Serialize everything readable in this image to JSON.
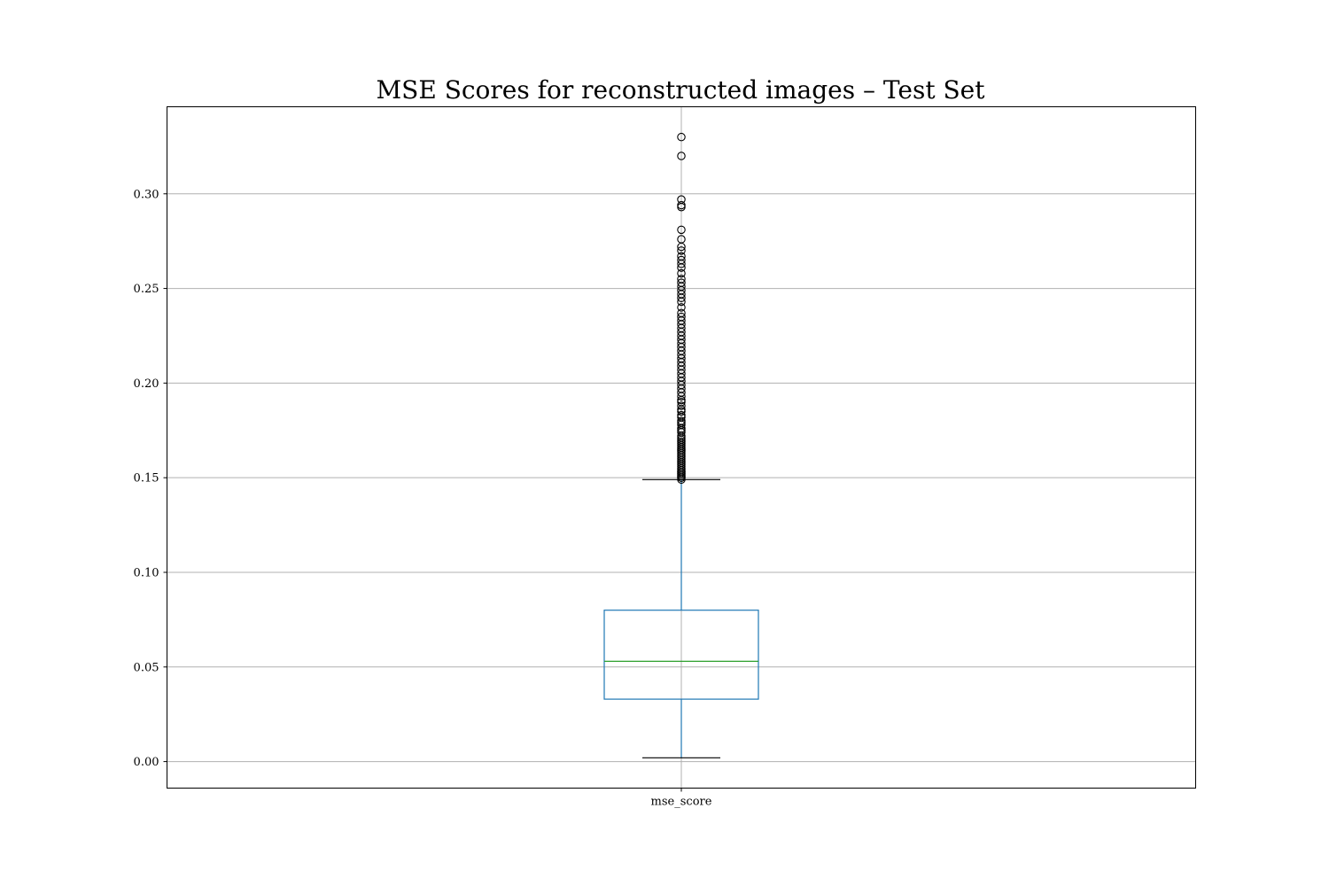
{
  "chart_data": {
    "type": "box",
    "title": "MSE Scores for reconstructed images – Test Set",
    "xlabel": "",
    "ylabel": "",
    "categories": [
      "mse_score"
    ],
    "ylim": [
      -0.014,
      0.346
    ],
    "yticks": [
      0.0,
      0.05,
      0.1,
      0.15,
      0.2,
      0.25,
      0.3
    ],
    "ytick_labels": [
      "0.00",
      "0.05",
      "0.10",
      "0.15",
      "0.20",
      "0.25",
      "0.30"
    ],
    "grid": true,
    "box": {
      "whisker_low": 0.002,
      "q1": 0.033,
      "median": 0.053,
      "q3": 0.08,
      "whisker_high": 0.149
    },
    "outliers": [
      0.149,
      0.15,
      0.15,
      0.151,
      0.151,
      0.152,
      0.152,
      0.153,
      0.153,
      0.154,
      0.155,
      0.156,
      0.157,
      0.158,
      0.159,
      0.16,
      0.161,
      0.162,
      0.163,
      0.164,
      0.165,
      0.166,
      0.167,
      0.168,
      0.169,
      0.17,
      0.171,
      0.172,
      0.174,
      0.175,
      0.176,
      0.178,
      0.179,
      0.18,
      0.182,
      0.183,
      0.185,
      0.186,
      0.188,
      0.19,
      0.191,
      0.193,
      0.195,
      0.197,
      0.199,
      0.201,
      0.203,
      0.205,
      0.207,
      0.209,
      0.211,
      0.213,
      0.215,
      0.217,
      0.219,
      0.221,
      0.223,
      0.225,
      0.227,
      0.229,
      0.231,
      0.233,
      0.235,
      0.237,
      0.24,
      0.243,
      0.245,
      0.247,
      0.249,
      0.251,
      0.253,
      0.255,
      0.258,
      0.261,
      0.263,
      0.265,
      0.267,
      0.27,
      0.272,
      0.276,
      0.281,
      0.293,
      0.294,
      0.297,
      0.32,
      0.33
    ],
    "colors": {
      "box": "#1f77b4",
      "median": "#2ca02c",
      "cap": "#000000",
      "outlier_edge": "#000000",
      "grid": "#b0b0b0"
    }
  }
}
